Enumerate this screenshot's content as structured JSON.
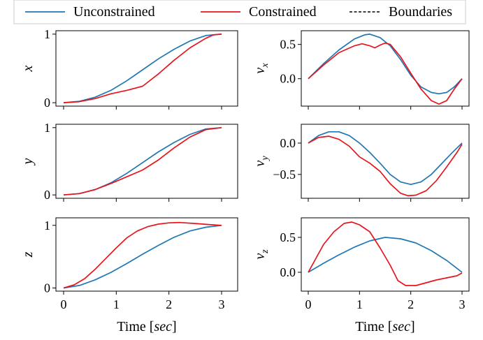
{
  "legend": {
    "entries": [
      {
        "label": "Unconstrained",
        "color": "#1f77b4",
        "style": "solid"
      },
      {
        "label": "Constrained",
        "color": "#e8141c",
        "style": "solid"
      },
      {
        "label": "Boundaries",
        "color": "#000000",
        "style": "dashed"
      }
    ]
  },
  "xlabel_prefix": "Time [",
  "xlabel_unit": "sec",
  "xlabel_suffix": "]",
  "chart_data": [
    {
      "type": "line",
      "panel": "x",
      "ylabel": "x",
      "ylabel_sub": "",
      "xlim": [
        0,
        3
      ],
      "ylim": [
        -0.05,
        1.05
      ],
      "xticks": [
        0,
        1,
        2,
        3
      ],
      "yticks": [
        0,
        1
      ],
      "ytick_labels": [
        "0",
        "1"
      ],
      "series": [
        {
          "name": "Unconstrained",
          "color": "#1f77b4",
          "points": [
            [
              0,
              0
            ],
            [
              0.3,
              0.02
            ],
            [
              0.6,
              0.08
            ],
            [
              0.9,
              0.18
            ],
            [
              1.2,
              0.32
            ],
            [
              1.5,
              0.48
            ],
            [
              1.8,
              0.64
            ],
            [
              2.1,
              0.78
            ],
            [
              2.4,
              0.9
            ],
            [
              2.7,
              0.98
            ],
            [
              3.0,
              1.0
            ]
          ]
        },
        {
          "name": "Constrained",
          "color": "#e8141c",
          "points": [
            [
              0,
              0
            ],
            [
              0.3,
              0.015
            ],
            [
              0.6,
              0.06
            ],
            [
              0.9,
              0.13
            ],
            [
              1.2,
              0.18
            ],
            [
              1.5,
              0.24
            ],
            [
              1.8,
              0.42
            ],
            [
              2.1,
              0.62
            ],
            [
              2.4,
              0.8
            ],
            [
              2.7,
              0.94
            ],
            [
              2.85,
              0.99
            ],
            [
              3.0,
              1.0
            ]
          ]
        }
      ]
    },
    {
      "type": "line",
      "panel": "vx",
      "ylabel": "v",
      "ylabel_sub": "x",
      "xlim": [
        0,
        3
      ],
      "ylim": [
        -0.4,
        0.7
      ],
      "xticks": [
        0,
        1,
        2,
        3
      ],
      "yticks": [
        0.5,
        0.0
      ],
      "ytick_labels": [
        "0.5",
        "0.0"
      ],
      "series": [
        {
          "name": "Unconstrained",
          "color": "#1f77b4",
          "points": [
            [
              0,
              0
            ],
            [
              0.3,
              0.22
            ],
            [
              0.6,
              0.42
            ],
            [
              0.9,
              0.58
            ],
            [
              1.1,
              0.64
            ],
            [
              1.2,
              0.65
            ],
            [
              1.4,
              0.6
            ],
            [
              1.6,
              0.48
            ],
            [
              1.8,
              0.28
            ],
            [
              2.0,
              0.05
            ],
            [
              2.2,
              -0.12
            ],
            [
              2.4,
              -0.2
            ],
            [
              2.55,
              -0.22
            ],
            [
              2.7,
              -0.2
            ],
            [
              2.85,
              -0.12
            ],
            [
              3.0,
              0.0
            ]
          ]
        },
        {
          "name": "Constrained",
          "color": "#e8141c",
          "points": [
            [
              0,
              0
            ],
            [
              0.3,
              0.2
            ],
            [
              0.6,
              0.38
            ],
            [
              0.9,
              0.48
            ],
            [
              1.05,
              0.51
            ],
            [
              1.2,
              0.48
            ],
            [
              1.3,
              0.45
            ],
            [
              1.4,
              0.49
            ],
            [
              1.5,
              0.52
            ],
            [
              1.6,
              0.5
            ],
            [
              1.8,
              0.32
            ],
            [
              2.0,
              0.08
            ],
            [
              2.2,
              -0.15
            ],
            [
              2.4,
              -0.32
            ],
            [
              2.55,
              -0.37
            ],
            [
              2.7,
              -0.32
            ],
            [
              2.85,
              -0.15
            ],
            [
              3.0,
              0.0
            ]
          ]
        }
      ]
    },
    {
      "type": "line",
      "panel": "y",
      "ylabel": "y",
      "ylabel_sub": "",
      "xlim": [
        0,
        3
      ],
      "ylim": [
        -0.05,
        1.05
      ],
      "xticks": [
        0,
        1,
        2,
        3
      ],
      "yticks": [
        0,
        1
      ],
      "ytick_labels": [
        "0",
        "1"
      ],
      "series": [
        {
          "name": "Unconstrained",
          "color": "#1f77b4",
          "points": [
            [
              0,
              0
            ],
            [
              0.3,
              0.02
            ],
            [
              0.6,
              0.08
            ],
            [
              0.9,
              0.18
            ],
            [
              1.2,
              0.32
            ],
            [
              1.5,
              0.48
            ],
            [
              1.8,
              0.64
            ],
            [
              2.1,
              0.78
            ],
            [
              2.4,
              0.9
            ],
            [
              2.7,
              0.98
            ],
            [
              3.0,
              1.0
            ]
          ]
        },
        {
          "name": "Constrained",
          "color": "#e8141c",
          "points": [
            [
              0,
              0
            ],
            [
              0.3,
              0.02
            ],
            [
              0.6,
              0.08
            ],
            [
              0.9,
              0.17
            ],
            [
              1.2,
              0.27
            ],
            [
              1.5,
              0.37
            ],
            [
              1.8,
              0.52
            ],
            [
              2.1,
              0.7
            ],
            [
              2.4,
              0.86
            ],
            [
              2.7,
              0.97
            ],
            [
              3.0,
              1.0
            ]
          ]
        }
      ]
    },
    {
      "type": "line",
      "panel": "vy",
      "ylabel": "v",
      "ylabel_sub": "y",
      "xlim": [
        0,
        3
      ],
      "ylim": [
        -0.88,
        0.3
      ],
      "xticks": [
        0,
        1,
        2,
        3
      ],
      "yticks": [
        0.0,
        -0.5
      ],
      "ytick_labels": [
        "0.0",
        "−0.5"
      ],
      "series": [
        {
          "name": "Unconstrained",
          "color": "#1f77b4",
          "points": [
            [
              0,
              0
            ],
            [
              0.2,
              0.12
            ],
            [
              0.4,
              0.18
            ],
            [
              0.6,
              0.18
            ],
            [
              0.8,
              0.12
            ],
            [
              1.0,
              0.0
            ],
            [
              1.2,
              -0.15
            ],
            [
              1.4,
              -0.32
            ],
            [
              1.6,
              -0.5
            ],
            [
              1.8,
              -0.62
            ],
            [
              2.0,
              -0.66
            ],
            [
              2.2,
              -0.62
            ],
            [
              2.4,
              -0.5
            ],
            [
              2.6,
              -0.33
            ],
            [
              2.8,
              -0.16
            ],
            [
              3.0,
              0.0
            ]
          ]
        },
        {
          "name": "Constrained",
          "color": "#e8141c",
          "points": [
            [
              0,
              0
            ],
            [
              0.2,
              0.09
            ],
            [
              0.4,
              0.11
            ],
            [
              0.6,
              0.06
            ],
            [
              0.8,
              -0.05
            ],
            [
              1.0,
              -0.22
            ],
            [
              1.2,
              -0.32
            ],
            [
              1.4,
              -0.45
            ],
            [
              1.6,
              -0.65
            ],
            [
              1.8,
              -0.8
            ],
            [
              1.95,
              -0.84
            ],
            [
              2.1,
              -0.83
            ],
            [
              2.3,
              -0.76
            ],
            [
              2.5,
              -0.6
            ],
            [
              2.7,
              -0.38
            ],
            [
              2.9,
              -0.15
            ],
            [
              3.0,
              -0.02
            ]
          ]
        }
      ]
    },
    {
      "type": "line",
      "panel": "z",
      "ylabel": "z",
      "ylabel_sub": "",
      "xlim": [
        0,
        3
      ],
      "ylim": [
        -0.05,
        1.12
      ],
      "xticks": [
        0,
        1,
        2,
        3
      ],
      "yticks": [
        0,
        1
      ],
      "ytick_labels": [
        "0",
        "1"
      ],
      "series": [
        {
          "name": "Unconstrained",
          "color": "#1f77b4",
          "points": [
            [
              0,
              0
            ],
            [
              0.3,
              0.04
            ],
            [
              0.6,
              0.13
            ],
            [
              0.9,
              0.25
            ],
            [
              1.2,
              0.39
            ],
            [
              1.5,
              0.54
            ],
            [
              1.8,
              0.68
            ],
            [
              2.1,
              0.81
            ],
            [
              2.4,
              0.91
            ],
            [
              2.7,
              0.97
            ],
            [
              3.0,
              1.0
            ]
          ]
        },
        {
          "name": "Constrained",
          "color": "#e8141c",
          "points": [
            [
              0,
              0
            ],
            [
              0.2,
              0.05
            ],
            [
              0.4,
              0.15
            ],
            [
              0.6,
              0.3
            ],
            [
              0.8,
              0.47
            ],
            [
              1.0,
              0.64
            ],
            [
              1.2,
              0.8
            ],
            [
              1.4,
              0.91
            ],
            [
              1.6,
              0.98
            ],
            [
              1.8,
              1.02
            ],
            [
              2.0,
              1.04
            ],
            [
              2.2,
              1.045
            ],
            [
              2.5,
              1.03
            ],
            [
              2.8,
              1.01
            ],
            [
              3.0,
              1.0
            ]
          ]
        }
      ]
    },
    {
      "type": "line",
      "panel": "vz",
      "ylabel": "v",
      "ylabel_sub": "z",
      "xlim": [
        0,
        3
      ],
      "ylim": [
        -0.27,
        0.78
      ],
      "xticks": [
        0,
        1,
        2,
        3
      ],
      "yticks": [
        0.5,
        0.0
      ],
      "ytick_labels": [
        "0.5",
        "0.0"
      ],
      "series": [
        {
          "name": "Unconstrained",
          "color": "#1f77b4",
          "points": [
            [
              0,
              0
            ],
            [
              0.3,
              0.13
            ],
            [
              0.6,
              0.25
            ],
            [
              0.9,
              0.36
            ],
            [
              1.2,
              0.45
            ],
            [
              1.5,
              0.5
            ],
            [
              1.8,
              0.48
            ],
            [
              2.1,
              0.42
            ],
            [
              2.4,
              0.31
            ],
            [
              2.7,
              0.17
            ],
            [
              3.0,
              0.0
            ]
          ]
        },
        {
          "name": "Constrained",
          "color": "#e8141c",
          "points": [
            [
              0,
              0
            ],
            [
              0.15,
              0.2
            ],
            [
              0.3,
              0.4
            ],
            [
              0.5,
              0.58
            ],
            [
              0.7,
              0.7
            ],
            [
              0.85,
              0.72
            ],
            [
              1.0,
              0.68
            ],
            [
              1.2,
              0.58
            ],
            [
              1.4,
              0.35
            ],
            [
              1.6,
              0.1
            ],
            [
              1.75,
              -0.12
            ],
            [
              1.9,
              -0.19
            ],
            [
              2.1,
              -0.19
            ],
            [
              2.3,
              -0.15
            ],
            [
              2.5,
              -0.11
            ],
            [
              2.7,
              -0.08
            ],
            [
              2.9,
              -0.05
            ],
            [
              3.0,
              -0.01
            ]
          ]
        }
      ]
    }
  ]
}
